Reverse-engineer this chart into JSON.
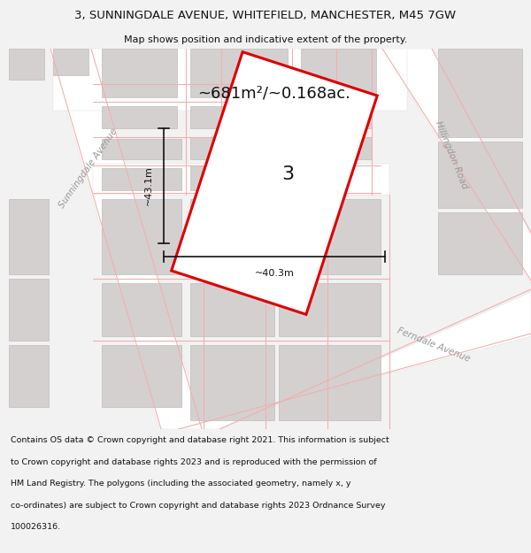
{
  "title_line1": "3, SUNNINGDALE AVENUE, WHITEFIELD, MANCHESTER, M45 7GW",
  "title_line2": "Map shows position and indicative extent of the property.",
  "area_text": "~681m²/~0.168ac.",
  "width_label": "~40.3m",
  "height_label": "~43.1m",
  "plot_number": "3",
  "road_label_left": "Sunningdale Avenue",
  "road_label_right": "Hillingdon Road",
  "road_label_bottom": "Ferndale Avenue",
  "copyright_lines": [
    "Contains OS data © Crown copyright and database right 2021. This information is subject",
    "to Crown copyright and database rights 2023 and is reproduced with the permission of",
    "HM Land Registry. The polygons (including the associated geometry, namely x, y",
    "co-ordinates) are subject to Crown copyright and database rights 2023 Ordnance Survey",
    "100026316."
  ],
  "bg_color": "#f2f2f2",
  "map_bg": "#eeecec",
  "road_color": "#ffffff",
  "building_fill": "#d4d0d0",
  "building_edge": "#c0bcbc",
  "road_line_color": "#f0b0b0",
  "plot_outline_color": "#dd0000",
  "plot_fill": "#ffffff",
  "dim_line_color": "#111111",
  "title_color": "#111111",
  "road_label_color": "#999999",
  "text_color": "#111111",
  "footer_color": "#111111"
}
